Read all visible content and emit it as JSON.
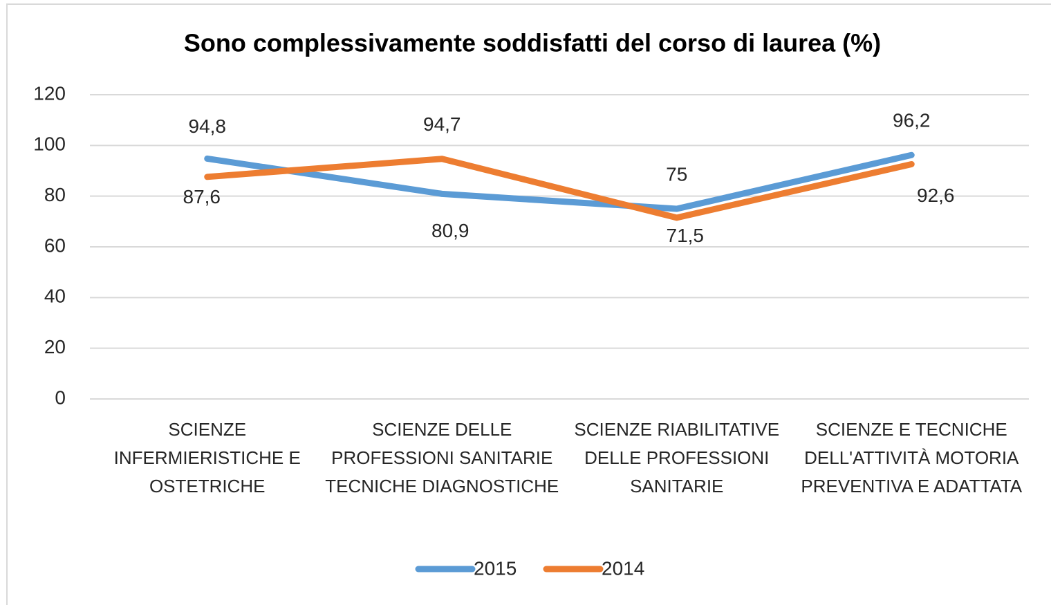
{
  "chart_data": {
    "type": "line",
    "title": "Sono complessivamente soddisfatti del corso di laurea (%)",
    "categories": [
      "SCIENZE INFERMIERISTICHE E OSTETRICHE",
      "SCIENZE DELLE PROFESSIONI SANITARIE TECNICHE DIAGNOSTICHE",
      "SCIENZE RIABILITATIVE DELLE PROFESSIONI SANITARIE",
      "SCIENZE E TECNICHE DELL'ATTIVITÀ MOTORIA PREVENTIVA E ADATTATA"
    ],
    "series": [
      {
        "name": "2015",
        "color": "#5b9bd5",
        "values": [
          94.8,
          80.9,
          75,
          96.2
        ],
        "value_labels": [
          "94,8",
          "80,9",
          "75",
          "96,2"
        ]
      },
      {
        "name": "2014",
        "color": "#ed7d31",
        "values": [
          87.6,
          94.7,
          71.5,
          92.6
        ],
        "value_labels": [
          "87,6",
          "94,7",
          "71,5",
          "92,6"
        ]
      }
    ],
    "ylim": [
      0,
      120
    ],
    "yticks": [
      0,
      20,
      40,
      60,
      80,
      100,
      120
    ],
    "grid": true,
    "legend": "bottom"
  }
}
